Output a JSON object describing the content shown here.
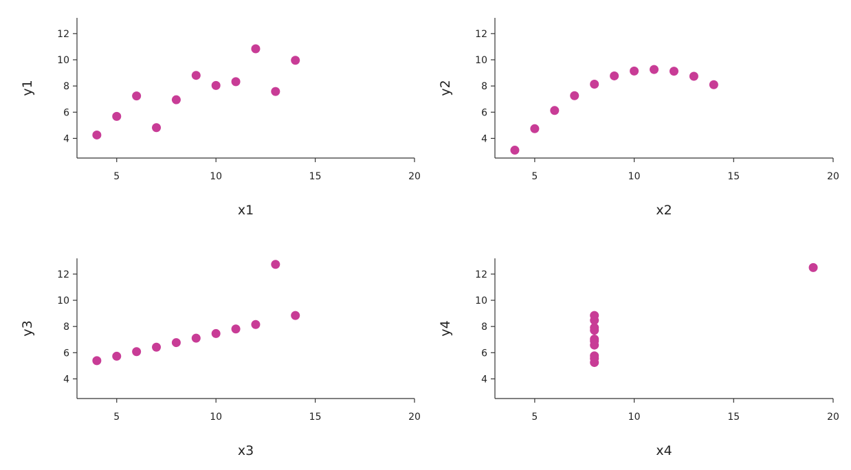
{
  "colors": {
    "marker": "#c83c96",
    "axis": "#333333"
  },
  "chart_data": [
    {
      "type": "scatter",
      "xlabel": "x1",
      "ylabel": "y1",
      "xlim": [
        3,
        20
      ],
      "ylim": [
        2.5,
        13.2
      ],
      "xticks": [
        5,
        10,
        15,
        20
      ],
      "yticks": [
        4,
        6,
        8,
        10,
        12
      ],
      "xtick_labels": [
        "5",
        "10",
        "15",
        "20"
      ],
      "ytick_labels": [
        "4",
        "6",
        "8",
        "10",
        "12"
      ],
      "points": [
        [
          4,
          4.26
        ],
        [
          5,
          5.68
        ],
        [
          6,
          7.24
        ],
        [
          7,
          4.82
        ],
        [
          8,
          6.95
        ],
        [
          9,
          8.81
        ],
        [
          10,
          8.04
        ],
        [
          11,
          8.33
        ],
        [
          12,
          10.84
        ],
        [
          13,
          7.58
        ],
        [
          14,
          9.96
        ]
      ]
    },
    {
      "type": "scatter",
      "xlabel": "x2",
      "ylabel": "y2",
      "xlim": [
        3,
        20
      ],
      "ylim": [
        2.5,
        13.2
      ],
      "xticks": [
        5,
        10,
        15,
        20
      ],
      "yticks": [
        4,
        6,
        8,
        10,
        12
      ],
      "xtick_labels": [
        "5",
        "10",
        "15",
        "20"
      ],
      "ytick_labels": [
        "4",
        "6",
        "8",
        "10",
        "12"
      ],
      "points": [
        [
          4,
          3.1
        ],
        [
          5,
          4.74
        ],
        [
          6,
          6.13
        ],
        [
          7,
          7.26
        ],
        [
          8,
          8.14
        ],
        [
          9,
          8.77
        ],
        [
          10,
          9.14
        ],
        [
          11,
          9.26
        ],
        [
          12,
          9.13
        ],
        [
          13,
          8.74
        ],
        [
          14,
          8.1
        ]
      ]
    },
    {
      "type": "scatter",
      "xlabel": "x3",
      "ylabel": "y3",
      "xlim": [
        3,
        20
      ],
      "ylim": [
        2.5,
        13.2
      ],
      "xticks": [
        5,
        10,
        15,
        20
      ],
      "yticks": [
        4,
        6,
        8,
        10,
        12
      ],
      "xtick_labels": [
        "5",
        "10",
        "15",
        "20"
      ],
      "ytick_labels": [
        "4",
        "6",
        "8",
        "10",
        "12"
      ],
      "points": [
        [
          4,
          5.39
        ],
        [
          5,
          5.73
        ],
        [
          6,
          6.08
        ],
        [
          7,
          6.42
        ],
        [
          8,
          6.77
        ],
        [
          9,
          7.11
        ],
        [
          10,
          7.46
        ],
        [
          11,
          7.81
        ],
        [
          12,
          8.15
        ],
        [
          13,
          12.74
        ],
        [
          14,
          8.84
        ]
      ]
    },
    {
      "type": "scatter",
      "xlabel": "x4",
      "ylabel": "y4",
      "xlim": [
        3,
        20
      ],
      "ylim": [
        2.5,
        13.2
      ],
      "xticks": [
        5,
        10,
        15,
        20
      ],
      "yticks": [
        4,
        6,
        8,
        10,
        12
      ],
      "xtick_labels": [
        "5",
        "10",
        "15",
        "20"
      ],
      "ytick_labels": [
        "4",
        "6",
        "8",
        "10",
        "12"
      ],
      "points": [
        [
          8,
          6.58
        ],
        [
          8,
          5.76
        ],
        [
          8,
          7.71
        ],
        [
          8,
          8.84
        ],
        [
          8,
          8.47
        ],
        [
          8,
          7.04
        ],
        [
          8,
          5.25
        ],
        [
          19,
          12.5
        ],
        [
          8,
          5.56
        ],
        [
          8,
          7.91
        ],
        [
          8,
          6.89
        ]
      ]
    }
  ]
}
